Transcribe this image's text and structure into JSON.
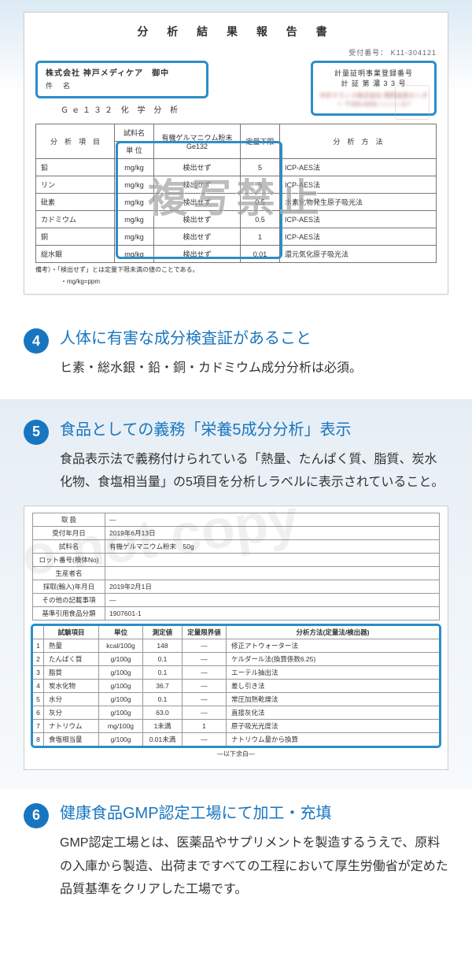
{
  "colors": {
    "accent": "#1876c0",
    "highlight_border": "#2b8ec7",
    "grad_top": "#e6eef5",
    "watermark": "#9b9b9b"
  },
  "report1": {
    "title": "分 析 結 果 報 告 書",
    "receipt_no": "受付番号： K11-304121",
    "company": "株式会社 神戸メディケア　御中",
    "subject_label": "件　名",
    "analysis_label": "Ｇｅ１３２ 化 学 分 析",
    "cert_line1": "計量証明事業登録番号",
    "cert_line2": "計 証 第 濃 3 3 号",
    "cert_blur": "中外テクノス株式会社\n関西技術センター\n〒000-0000 ○○○○○○3-7",
    "table": {
      "headers": {
        "item": "分　析　項　目",
        "sample_unit_top": "試料名",
        "sample_unit_bot": "単 位",
        "result": "有機ゲルマニウム粉末\nGe132",
        "limit": "定量下限",
        "method": "分　析　方　法"
      },
      "rows": [
        {
          "item": "鉛",
          "unit": "mg/kg",
          "val": "検出せず",
          "lim": "5",
          "method": "ICP-AES法"
        },
        {
          "item": "リン",
          "unit": "mg/kg",
          "val": "検出せず",
          "lim": "5",
          "method": "ICP-AES法"
        },
        {
          "item": "砒素",
          "unit": "mg/kg",
          "val": "検出せず",
          "lim": "0.5",
          "method": "水素化物発生原子吸光法"
        },
        {
          "item": "カドミウム",
          "unit": "mg/kg",
          "val": "検出せず",
          "lim": "0.5",
          "method": "ICP-AES法"
        },
        {
          "item": "銅",
          "unit": "mg/kg",
          "val": "検出せず",
          "lim": "1",
          "method": "ICP-AES法"
        },
        {
          "item": "総水銀",
          "unit": "mg/kg",
          "val": "検出せず",
          "lim": "0.01",
          "method": "還元気化原子吸光法"
        }
      ],
      "note1": "備考）・「検出せず」とは定量下限未満の値のことである。",
      "note2": "・mg/kg=ppm",
      "watermark": "複写禁止"
    }
  },
  "point4": {
    "num": "4",
    "title": "人体に有害な成分検査証があること",
    "text": "ヒ素・総水銀・鉛・銅・カドミウム成分分析は必須。"
  },
  "point5": {
    "num": "5",
    "title": "食品としての義務「栄養5成分分析」表示",
    "text": "食品表示法で義務付けられている「熱量、たんぱく質、脂質、炭水化物、食塩相当量」の5項目を分析しラベルに表示されていること。"
  },
  "report2": {
    "meta": [
      {
        "label": "取 扱",
        "value": "—"
      },
      {
        "label": "受付年月日",
        "value": "2019年6月13日"
      },
      {
        "label": "試料名",
        "value": "有機ゲルマニウム粉末　50g"
      },
      {
        "label": "ロット番号(検体No)",
        "value": ""
      },
      {
        "label": "生産者名",
        "value": ""
      },
      {
        "label": "採取(輸入)年月日",
        "value": "2019年2月1日"
      },
      {
        "label": "その他の記載事項",
        "value": "—"
      },
      {
        "label": "基準引用食品分類",
        "value": "1907601-1"
      }
    ],
    "headers": {
      "idx": "",
      "item": "試験項目",
      "unit": "単位",
      "val": "測定値",
      "lim": "定量限界値",
      "method": "分析方法(定量法/検出器)"
    },
    "rows": [
      {
        "n": "1",
        "item": "熱量",
        "unit": "kcal/100g",
        "val": "148",
        "lim": "—",
        "method": "修正アトウォーター法"
      },
      {
        "n": "2",
        "item": "たんぱく質",
        "unit": "g/100g",
        "val": "0.1",
        "lim": "—",
        "method": "ケルダール法(換算係数6.25)"
      },
      {
        "n": "3",
        "item": "脂質",
        "unit": "g/100g",
        "val": "0.1",
        "lim": "—",
        "method": "エーテル抽出法"
      },
      {
        "n": "4",
        "item": "炭水化物",
        "unit": "g/100g",
        "val": "36.7",
        "lim": "—",
        "method": "差し引き法"
      },
      {
        "n": "5",
        "item": "水分",
        "unit": "g/100g",
        "val": "0.1",
        "lim": "—",
        "method": "常圧加熱乾燥法"
      },
      {
        "n": "6",
        "item": "灰分",
        "unit": "g/100g",
        "val": "63.0",
        "lim": "—",
        "method": "直接灰化法"
      },
      {
        "n": "7",
        "item": "ナトリウム",
        "unit": "mg/100g",
        "val": "1未満",
        "lim": "1",
        "method": "原子吸光光度法"
      },
      {
        "n": "8",
        "item": "食塩相当量",
        "unit": "g/100g",
        "val": "0.01未満",
        "lim": "—",
        "method": "ナトリウム量から換算"
      }
    ],
    "below": "—以下余白—",
    "watermark": "do not copy"
  },
  "point6": {
    "num": "6",
    "title": "健康食品GMP認定工場にて加工・充填",
    "text": "GMP認定工場とは、医薬品やサプリメントを製造するうえで、原料の入庫から製造、出荷まですべての工程において厚生労働省が定めた品質基準をクリアした工場です。"
  }
}
